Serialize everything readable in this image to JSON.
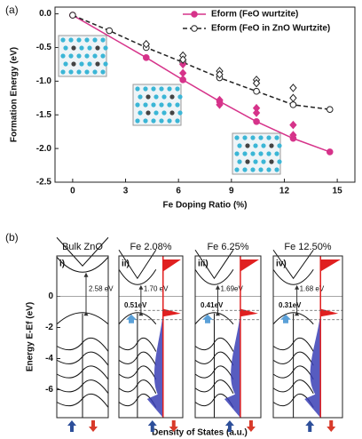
{
  "chart_data": [
    {
      "type": "line",
      "panel_label": "(a)",
      "x_label": "Fe Doping Ratio (%)",
      "y_label": "Formation Energy (eV)",
      "xlim": [
        -1,
        16
      ],
      "xticks": [
        0,
        3,
        6,
        9,
        12,
        15
      ],
      "ylim": [
        -2.5,
        0.1
      ],
      "yticks": [
        {
          "value": 0,
          "label": "0.0"
        },
        -0.5,
        {
          "value": -1,
          "label": "-1.0"
        },
        -1.5,
        {
          "value": -2,
          "label": "-2.0"
        },
        -2.5
      ],
      "legend": "upper right",
      "series": [
        {
          "name": "Eform (FeO wurtzite)",
          "color": "#d6338a",
          "line": "solid",
          "marker": "circle",
          "filled": true,
          "x": [
            0,
            4.17,
            6.25,
            8.33,
            10.42,
            12.5,
            14.58
          ],
          "values": [
            -0.02,
            -0.65,
            -0.98,
            -1.3,
            -1.6,
            -1.85,
            -2.05
          ]
        },
        {
          "name": "Eform (FeO in ZnO Wurtzite)",
          "color": "#222222",
          "line": "dashed",
          "marker": "circle",
          "filled": false,
          "x": [
            0,
            2.08,
            4.17,
            6.25,
            8.33,
            10.42,
            12.5,
            14.58
          ],
          "values": [
            -0.02,
            -0.25,
            -0.5,
            -0.72,
            -0.95,
            -1.15,
            -1.35,
            -1.42
          ]
        },
        {
          "color": "#d6338a",
          "line": "none",
          "marker": "diamond",
          "filled": true,
          "x": [
            6.25,
            6.25,
            8.33,
            8.33,
            10.42,
            10.42,
            12.5,
            12.5
          ],
          "values": [
            -0.75,
            -0.88,
            -1.28,
            -1.35,
            -1.4,
            -1.47,
            -1.65,
            -1.8
          ]
        },
        {
          "color": "#222222",
          "line": "none",
          "marker": "diamond",
          "filled": false,
          "x": [
            4.17,
            6.25,
            6.25,
            8.33,
            8.33,
            10.42,
            10.42,
            12.5,
            12.5
          ],
          "values": [
            -0.45,
            -0.62,
            -0.68,
            -0.85,
            -0.9,
            -0.98,
            -1.03,
            -1.1,
            -1.25
          ]
        }
      ]
    },
    {
      "type": "dos",
      "panel_label": "(b)",
      "y_label": "Energy E-Ef (eV)",
      "x_label": "Density of States (a.u.)",
      "ylim": [
        -7.8,
        2.6
      ],
      "yticks": [
        -6,
        -4,
        -2,
        0
      ],
      "panels": [
        {
          "title": "Bulk ZnO",
          "roman": "i)",
          "gap_label": "2.58 eV"
        },
        {
          "title": "Fe 2.08%",
          "roman": "ii)",
          "gap_label": "1.70 eV",
          "level_label": "0.51eV"
        },
        {
          "title": "Fe 6.25%",
          "roman": "iii)",
          "gap_label": "1.69eV",
          "level_label": "0.41eV"
        },
        {
          "title": "Fe 12.50%",
          "roman": "iv)",
          "gap_label": "1.68 eV",
          "level_label": "0.31eV"
        }
      ]
    }
  ]
}
